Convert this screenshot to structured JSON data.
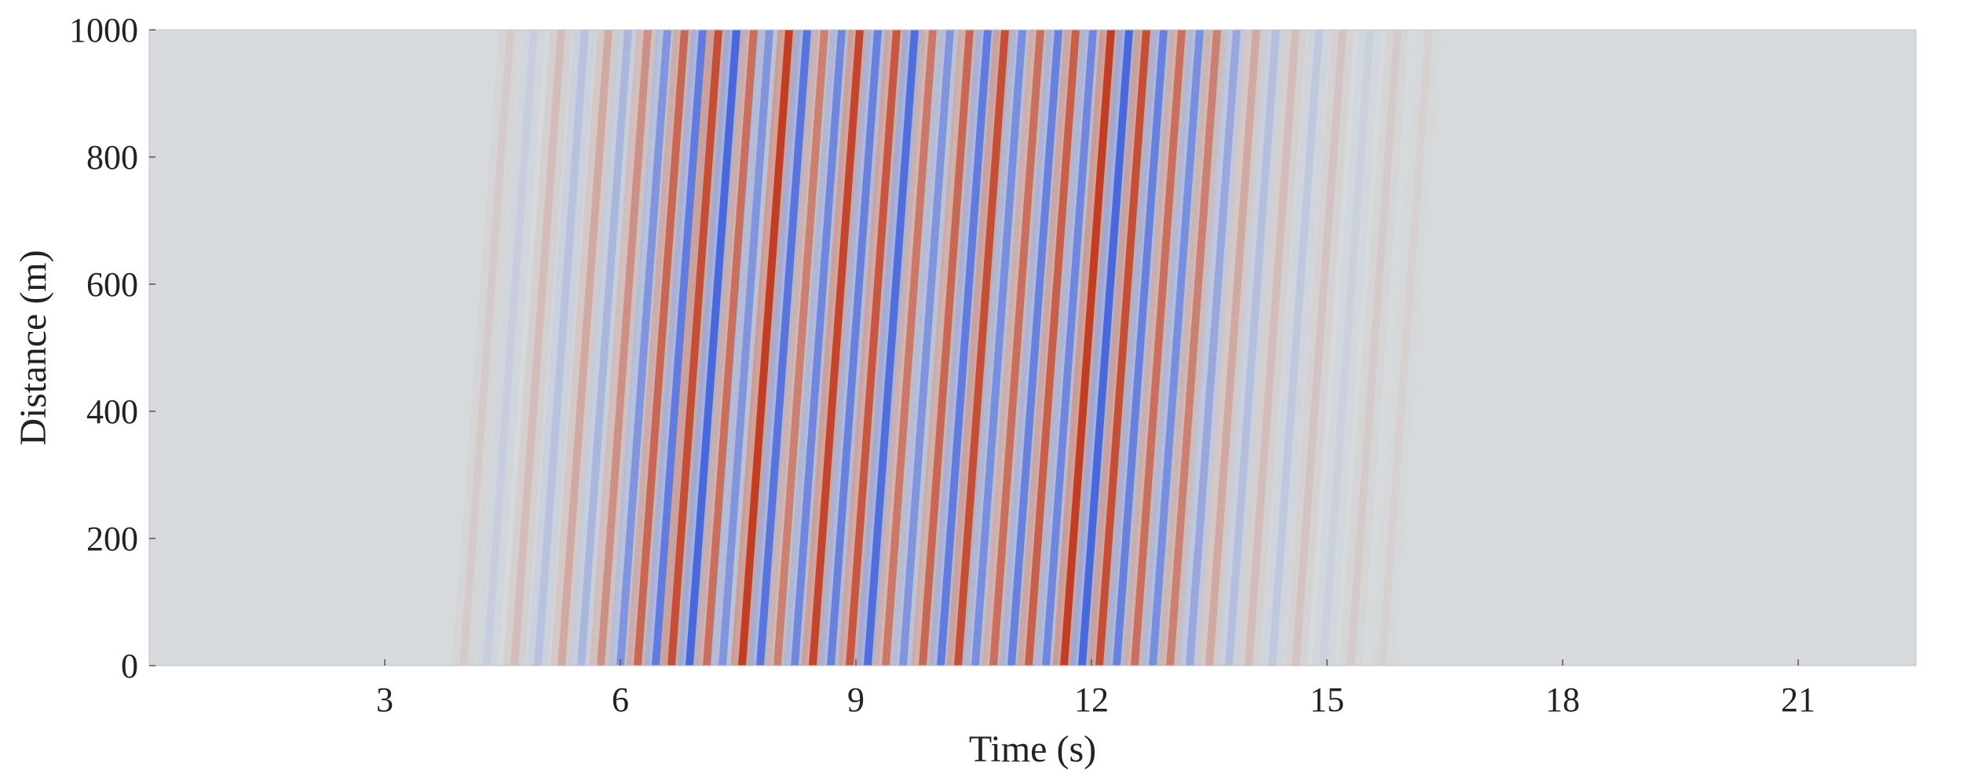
{
  "chart_data": {
    "type": "heatmap",
    "title": "",
    "xlabel": "Time (s)",
    "ylabel": "Distance (m)",
    "xlim": [
      0,
      22.5
    ],
    "ylim": [
      0,
      1000
    ],
    "xticks": [
      3,
      6,
      9,
      12,
      15,
      18,
      21
    ],
    "xtick_labels": [
      "3",
      "6",
      "9",
      "12",
      "15",
      "18",
      "21"
    ],
    "yticks": [
      0,
      200,
      400,
      600,
      800,
      1000
    ],
    "ytick_labels": [
      "0",
      "200",
      "400",
      "600",
      "800",
      "1000"
    ],
    "grid": false,
    "legend": "none",
    "colormap": {
      "negative": "#3b5bdb",
      "zero": "#d7dadd",
      "positive": "#c0361c"
    },
    "background_color": "#d7dadd",
    "moveout_time_at_1000m_s": 0.6,
    "wavefronts": [
      {
        "t0": 4.0,
        "amp": 0.1
      },
      {
        "t0": 4.3,
        "amp": -0.1
      },
      {
        "t0": 4.65,
        "amp": 0.18
      },
      {
        "t0": 4.95,
        "amp": -0.2
      },
      {
        "t0": 5.25,
        "amp": 0.3
      },
      {
        "t0": 5.5,
        "amp": -0.28
      },
      {
        "t0": 5.75,
        "amp": 0.45
      },
      {
        "t0": 6.0,
        "amp": -0.55
      },
      {
        "t0": 6.22,
        "amp": 0.7
      },
      {
        "t0": 6.45,
        "amp": -0.75
      },
      {
        "t0": 6.65,
        "amp": 0.85
      },
      {
        "t0": 6.88,
        "amp": -0.9
      },
      {
        "t0": 7.1,
        "amp": 0.65
      },
      {
        "t0": 7.3,
        "amp": -0.55
      },
      {
        "t0": 7.55,
        "amp": 0.95
      },
      {
        "t0": 7.78,
        "amp": -0.8
      },
      {
        "t0": 8.0,
        "amp": 0.55
      },
      {
        "t0": 8.22,
        "amp": -0.65
      },
      {
        "t0": 8.45,
        "amp": 0.9
      },
      {
        "t0": 8.68,
        "amp": -0.7
      },
      {
        "t0": 8.92,
        "amp": 0.8
      },
      {
        "t0": 9.15,
        "amp": -0.85
      },
      {
        "t0": 9.38,
        "amp": 0.6
      },
      {
        "t0": 9.6,
        "amp": -0.55
      },
      {
        "t0": 9.85,
        "amp": 0.7
      },
      {
        "t0": 10.08,
        "amp": -0.75
      },
      {
        "t0": 10.3,
        "amp": 0.85
      },
      {
        "t0": 10.52,
        "amp": -0.6
      },
      {
        "t0": 10.75,
        "amp": 0.65
      },
      {
        "t0": 10.98,
        "amp": -0.7
      },
      {
        "t0": 11.2,
        "amp": 0.75
      },
      {
        "t0": 11.42,
        "amp": -0.65
      },
      {
        "t0": 11.65,
        "amp": 0.95
      },
      {
        "t0": 11.88,
        "amp": -0.9
      },
      {
        "t0": 12.1,
        "amp": 0.85
      },
      {
        "t0": 12.32,
        "amp": -0.7
      },
      {
        "t0": 12.55,
        "amp": 0.65
      },
      {
        "t0": 12.78,
        "amp": -0.6
      },
      {
        "t0": 13.0,
        "amp": 0.55
      },
      {
        "t0": 13.25,
        "amp": -0.4
      },
      {
        "t0": 13.5,
        "amp": 0.3
      },
      {
        "t0": 13.75,
        "amp": -0.22
      },
      {
        "t0": 14.0,
        "amp": 0.18
      },
      {
        "t0": 14.3,
        "amp": -0.14
      },
      {
        "t0": 14.6,
        "amp": 0.14
      },
      {
        "t0": 14.95,
        "amp": -0.08
      },
      {
        "t0": 15.3,
        "amp": 0.1
      },
      {
        "t0": 15.7,
        "amp": 0.06
      }
    ]
  }
}
